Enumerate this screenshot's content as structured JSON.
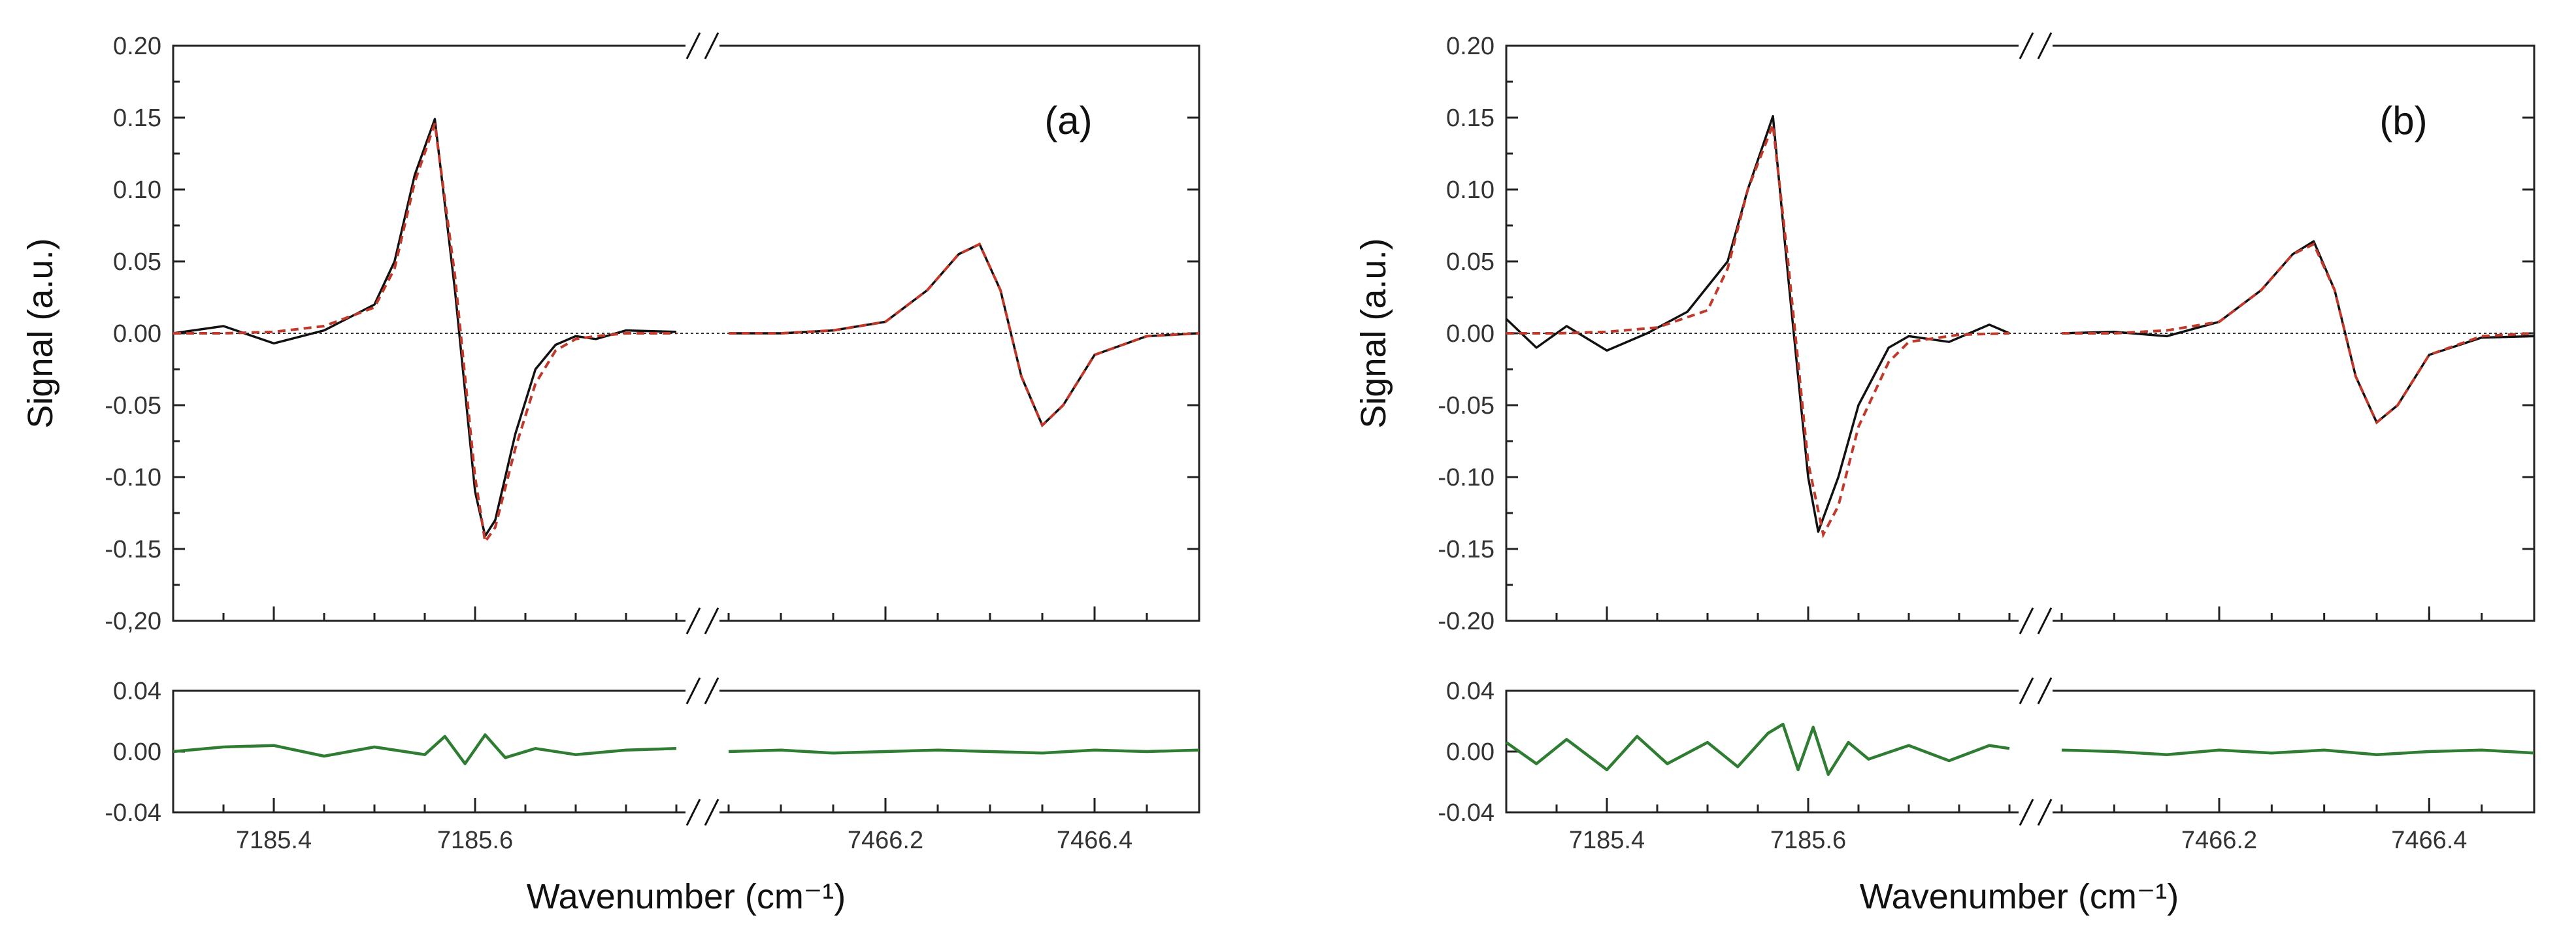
{
  "chart_data": [
    {
      "type": "line",
      "panel_label": "(a)",
      "ylabel": "Signal (a.u.)",
      "xlabel": "Wavenumber (cm⁻¹)",
      "axis_break": "//",
      "ylim": [
        -0.2,
        0.2
      ],
      "yticks": [
        "0.20",
        "0.15",
        "0.10",
        "0.05",
        "0.00",
        "-0.05",
        "-0.10",
        "-0.15",
        "-0,20"
      ],
      "residual_ylim": [
        -0.04,
        0.04
      ],
      "residual_yticks": [
        "0.04",
        "0.00",
        "-0.04"
      ],
      "segments": [
        {
          "xlim": [
            7185.3,
            7185.8
          ],
          "xticks": [
            "7185.4",
            "7185.6"
          ],
          "measured_x": [
            7185.3,
            7185.35,
            7185.4,
            7185.45,
            7185.5,
            7185.52,
            7185.54,
            7185.56,
            7185.58,
            7185.6,
            7185.61,
            7185.62,
            7185.64,
            7185.66,
            7185.68,
            7185.7,
            7185.72,
            7185.75,
            7185.8
          ],
          "measured_y": [
            0.0,
            0.005,
            -0.007,
            0.002,
            0.02,
            0.05,
            0.11,
            0.149,
            0.03,
            -0.11,
            -0.141,
            -0.13,
            -0.07,
            -0.025,
            -0.008,
            -0.002,
            -0.004,
            0.002,
            0.001
          ],
          "fit_x": [
            7185.3,
            7185.35,
            7185.4,
            7185.45,
            7185.5,
            7185.52,
            7185.54,
            7185.56,
            7185.58,
            7185.6,
            7185.61,
            7185.62,
            7185.64,
            7185.66,
            7185.68,
            7185.7,
            7185.72,
            7185.75,
            7185.8
          ],
          "fit_y": [
            0.0,
            0.0,
            0.001,
            0.005,
            0.018,
            0.045,
            0.105,
            0.146,
            0.04,
            -0.1,
            -0.145,
            -0.135,
            -0.08,
            -0.035,
            -0.012,
            -0.004,
            -0.002,
            0.0,
            0.0
          ],
          "residual_x": [
            7185.3,
            7185.35,
            7185.4,
            7185.45,
            7185.5,
            7185.55,
            7185.57,
            7185.59,
            7185.61,
            7185.63,
            7185.66,
            7185.7,
            7185.75,
            7185.8
          ],
          "residual_y": [
            0.0,
            0.003,
            0.004,
            -0.003,
            0.003,
            -0.002,
            0.01,
            -0.008,
            0.011,
            -0.004,
            0.002,
            -0.002,
            0.001,
            0.002
          ]
        },
        {
          "xlim": [
            7466.05,
            7466.5
          ],
          "xticks": [
            "7466.2",
            "7466.4"
          ],
          "measured_x": [
            7466.05,
            7466.1,
            7466.15,
            7466.2,
            7466.24,
            7466.27,
            7466.29,
            7466.31,
            7466.33,
            7466.35,
            7466.37,
            7466.4,
            7466.45,
            7466.5
          ],
          "measured_y": [
            0.0,
            0.0,
            0.002,
            0.008,
            0.03,
            0.055,
            0.062,
            0.03,
            -0.03,
            -0.064,
            -0.05,
            -0.015,
            -0.002,
            0.0
          ],
          "fit_x": [
            7466.05,
            7466.1,
            7466.15,
            7466.2,
            7466.24,
            7466.27,
            7466.29,
            7466.31,
            7466.33,
            7466.35,
            7466.37,
            7466.4,
            7466.45,
            7466.5
          ],
          "fit_y": [
            0.0,
            0.0,
            0.002,
            0.008,
            0.03,
            0.055,
            0.062,
            0.03,
            -0.03,
            -0.064,
            -0.05,
            -0.015,
            -0.002,
            0.0
          ],
          "residual_x": [
            7466.05,
            7466.1,
            7466.15,
            7466.2,
            7466.25,
            7466.3,
            7466.35,
            7466.4,
            7466.45,
            7466.5
          ],
          "residual_y": [
            0.0,
            0.001,
            -0.001,
            0.0,
            0.001,
            0.0,
            -0.001,
            0.001,
            0.0,
            0.001
          ]
        }
      ]
    },
    {
      "type": "line",
      "panel_label": "(b)",
      "ylabel": "Signal (a.u.)",
      "xlabel": "Wavenumber (cm⁻¹)",
      "axis_break": "//",
      "ylim": [
        -0.2,
        0.2
      ],
      "yticks": [
        "0.20",
        "0.15",
        "0.10",
        "0.05",
        "0.00",
        "-0.05",
        "-0.10",
        "-0.15",
        "-0.20"
      ],
      "residual_ylim": [
        -0.04,
        0.04
      ],
      "residual_yticks": [
        "0.04",
        "0.00",
        "-0.04"
      ],
      "segments": [
        {
          "xlim": [
            7185.3,
            7185.8
          ],
          "xticks": [
            "7185.4",
            "7185.6"
          ],
          "measured_x": [
            7185.3,
            7185.33,
            7185.36,
            7185.4,
            7185.44,
            7185.48,
            7185.52,
            7185.54,
            7185.565,
            7185.58,
            7185.6,
            7185.61,
            7185.63,
            7185.65,
            7185.68,
            7185.7,
            7185.74,
            7185.78,
            7185.8
          ],
          "measured_y": [
            0.01,
            -0.01,
            0.005,
            -0.012,
            0.0,
            0.015,
            0.05,
            0.1,
            0.151,
            0.04,
            -0.1,
            -0.138,
            -0.1,
            -0.05,
            -0.01,
            -0.002,
            -0.006,
            0.006,
            0.0
          ],
          "fit_x": [
            7185.3,
            7185.35,
            7185.4,
            7185.45,
            7185.5,
            7185.52,
            7185.54,
            7185.565,
            7185.58,
            7185.6,
            7185.615,
            7185.63,
            7185.65,
            7185.68,
            7185.7,
            7185.75,
            7185.8
          ],
          "fit_y": [
            0.0,
            0.0,
            0.001,
            0.004,
            0.016,
            0.045,
            0.1,
            0.145,
            0.05,
            -0.09,
            -0.14,
            -0.12,
            -0.065,
            -0.02,
            -0.006,
            -0.001,
            0.0
          ],
          "residual_x": [
            7185.3,
            7185.33,
            7185.36,
            7185.4,
            7185.43,
            7185.46,
            7185.5,
            7185.53,
            7185.56,
            7185.575,
            7185.59,
            7185.605,
            7185.62,
            7185.64,
            7185.66,
            7185.7,
            7185.74,
            7185.78,
            7185.8
          ],
          "residual_y": [
            0.006,
            -0.008,
            0.008,
            -0.012,
            0.01,
            -0.008,
            0.006,
            -0.01,
            0.012,
            0.018,
            -0.012,
            0.016,
            -0.015,
            0.006,
            -0.005,
            0.004,
            -0.006,
            0.004,
            0.002
          ]
        },
        {
          "xlim": [
            7466.05,
            7466.5
          ],
          "xticks": [
            "7466.2",
            "7466.4"
          ],
          "measured_x": [
            7466.05,
            7466.1,
            7466.15,
            7466.2,
            7466.24,
            7466.27,
            7466.29,
            7466.31,
            7466.33,
            7466.35,
            7466.37,
            7466.4,
            7466.45,
            7466.5
          ],
          "measured_y": [
            0.0,
            0.001,
            -0.002,
            0.008,
            0.03,
            0.055,
            0.064,
            0.03,
            -0.03,
            -0.062,
            -0.05,
            -0.015,
            -0.003,
            -0.002
          ],
          "fit_x": [
            7466.05,
            7466.1,
            7466.15,
            7466.2,
            7466.24,
            7466.27,
            7466.29,
            7466.31,
            7466.33,
            7466.35,
            7466.37,
            7466.4,
            7466.45,
            7466.5
          ],
          "fit_y": [
            0.0,
            0.0,
            0.002,
            0.008,
            0.03,
            0.055,
            0.062,
            0.03,
            -0.03,
            -0.062,
            -0.05,
            -0.015,
            -0.002,
            0.0
          ],
          "residual_x": [
            7466.05,
            7466.1,
            7466.15,
            7466.2,
            7466.25,
            7466.3,
            7466.35,
            7466.4,
            7466.45,
            7466.5
          ],
          "residual_y": [
            0.001,
            0.0,
            -0.002,
            0.001,
            -0.001,
            0.001,
            -0.002,
            0.0,
            0.001,
            -0.001
          ]
        }
      ]
    }
  ]
}
